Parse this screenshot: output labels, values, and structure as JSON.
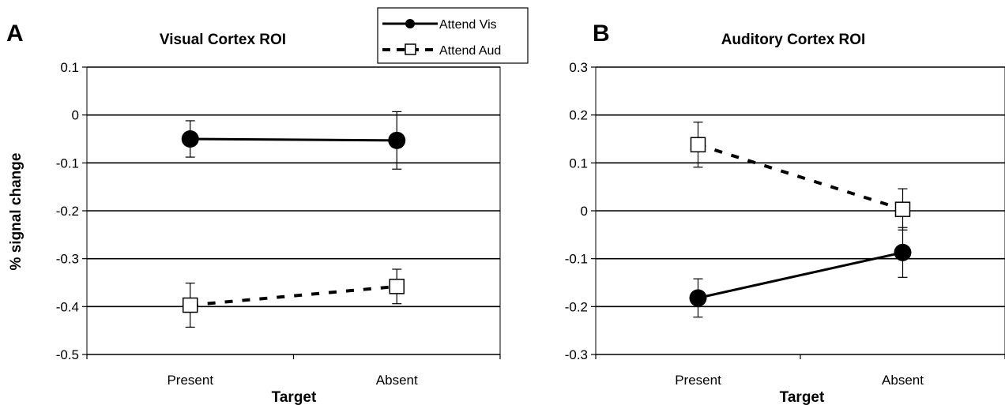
{
  "legend": {
    "items": [
      {
        "label": "Attend Vis",
        "style": "solid",
        "marker": "filled-circle"
      },
      {
        "label": "Attend Aud",
        "style": "dashed",
        "marker": "open-square"
      }
    ]
  },
  "shared_ylabel": "% signal change",
  "chart_data": [
    {
      "type": "line",
      "panel_letter": "A",
      "title": "Visual Cortex ROI",
      "xlabel": "Target",
      "ylabel": "% signal change",
      "categories": [
        "Present",
        "Absent"
      ],
      "ylim": [
        -0.5,
        0.1
      ],
      "yticks": [
        0.1,
        0,
        -0.1,
        -0.2,
        -0.3,
        -0.4,
        -0.5
      ],
      "ytick_labels": [
        "0.1",
        "0",
        "-0.1",
        "-0.2",
        "-0.3",
        "-0.4",
        "-0.5"
      ],
      "grid": true,
      "series": [
        {
          "name": "Attend Vis",
          "values": [
            -0.05,
            -0.053
          ],
          "error": [
            0.038,
            0.06
          ]
        },
        {
          "name": "Attend Aud",
          "values": [
            -0.397,
            -0.358
          ],
          "error": [
            0.046,
            0.036
          ]
        }
      ]
    },
    {
      "type": "line",
      "panel_letter": "B",
      "title": "Auditory Cortex ROI",
      "xlabel": "Target",
      "ylabel": "",
      "categories": [
        "Present",
        "Absent"
      ],
      "ylim": [
        -0.3,
        0.3
      ],
      "yticks": [
        0.3,
        0.2,
        0.1,
        0,
        -0.1,
        -0.2,
        -0.3
      ],
      "ytick_labels": [
        "0.3",
        "0.2",
        "0.1",
        "0",
        "-0.1",
        "-0.2",
        "-0.3"
      ],
      "grid": true,
      "series": [
        {
          "name": "Attend Vis",
          "values": [
            -0.182,
            -0.087
          ],
          "error": [
            0.04,
            0.052
          ]
        },
        {
          "name": "Attend Aud",
          "values": [
            0.138,
            0.003
          ],
          "error": [
            0.047,
            0.043
          ]
        }
      ]
    }
  ]
}
